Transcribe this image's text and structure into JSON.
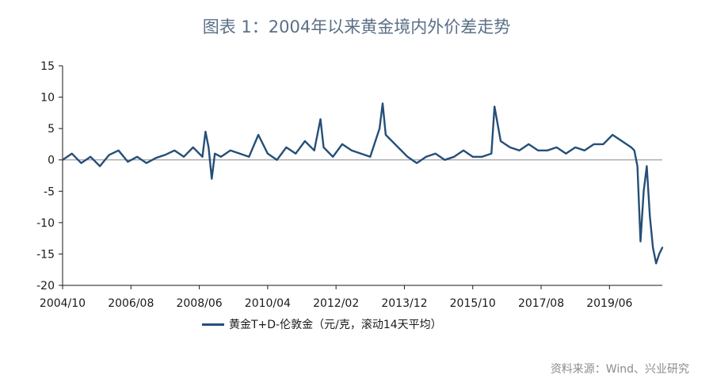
{
  "title": "图表 1：2004年以来黄金境内外价差走势",
  "source": "资料来源：Wind、兴业研究",
  "colors": {
    "series": "#254f78",
    "axis": "#1a1a1a",
    "zero_line": "#8c8c8c",
    "title": "#5b6f86"
  },
  "chart_data": {
    "type": "line",
    "title": "图表 1：2004年以来黄金境内外价差走势",
    "xlabel": "",
    "ylabel": "",
    "ylim": [
      -20,
      15
    ],
    "yticks": [
      15,
      10,
      5,
      0,
      -5,
      -10,
      -15,
      -20
    ],
    "xlim": [
      "2004-10",
      "2020-11"
    ],
    "xticks": [
      "2004/10",
      "2006/08",
      "2008/06",
      "2010/04",
      "2012/02",
      "2013/12",
      "2015/10",
      "2017/08",
      "2019/06"
    ],
    "grid": false,
    "legend_position": "bottom",
    "series": [
      {
        "name": "黄金T+D-伦敦金（元/克，滚动14天平均）",
        "x": [
          "2004-10",
          "2005-01",
          "2005-04",
          "2005-07",
          "2005-10",
          "2006-01",
          "2006-04",
          "2006-07",
          "2006-10",
          "2007-01",
          "2007-04",
          "2007-07",
          "2007-10",
          "2008-01",
          "2008-04",
          "2008-07",
          "2008-08",
          "2008-09",
          "2008-10",
          "2008-11",
          "2009-01",
          "2009-04",
          "2009-07",
          "2009-10",
          "2010-01",
          "2010-04",
          "2010-07",
          "2010-10",
          "2011-01",
          "2011-04",
          "2011-07",
          "2011-09",
          "2011-10",
          "2012-01",
          "2012-04",
          "2012-07",
          "2012-10",
          "2013-01",
          "2013-04",
          "2013-05",
          "2013-06",
          "2013-07",
          "2013-10",
          "2014-01",
          "2014-04",
          "2014-07",
          "2014-10",
          "2015-01",
          "2015-04",
          "2015-07",
          "2015-10",
          "2016-01",
          "2016-04",
          "2016-05",
          "2016-07",
          "2016-10",
          "2017-01",
          "2017-04",
          "2017-07",
          "2017-10",
          "2018-01",
          "2018-04",
          "2018-07",
          "2018-10",
          "2019-01",
          "2019-04",
          "2019-07",
          "2019-10",
          "2020-01",
          "2020-02",
          "2020-03",
          "2020-04",
          "2020-05",
          "2020-06",
          "2020-07",
          "2020-08",
          "2020-09",
          "2020-10",
          "2020-11"
        ],
        "values": [
          0.0,
          1.0,
          -0.5,
          0.5,
          -1.0,
          0.8,
          1.5,
          -0.3,
          0.5,
          -0.5,
          0.3,
          0.8,
          1.5,
          0.5,
          2.0,
          0.5,
          4.5,
          2.0,
          -3.0,
          1.0,
          0.5,
          1.5,
          1.0,
          0.5,
          4.0,
          1.0,
          0.0,
          2.0,
          1.0,
          3.0,
          1.5,
          6.5,
          2.0,
          0.5,
          2.5,
          1.5,
          1.0,
          0.5,
          5.0,
          9.0,
          4.0,
          3.5,
          2.0,
          0.5,
          -0.5,
          0.5,
          1.0,
          0.0,
          0.5,
          1.5,
          0.5,
          0.5,
          1.0,
          8.5,
          3.0,
          2.0,
          1.5,
          2.5,
          1.5,
          1.5,
          2.0,
          1.0,
          2.0,
          1.5,
          2.5,
          2.5,
          4.0,
          3.0,
          2.0,
          1.5,
          -1.0,
          -13.0,
          -5.0,
          -1.0,
          -9.0,
          -14.0,
          -16.5,
          -15.0,
          -14.0
        ]
      }
    ]
  }
}
